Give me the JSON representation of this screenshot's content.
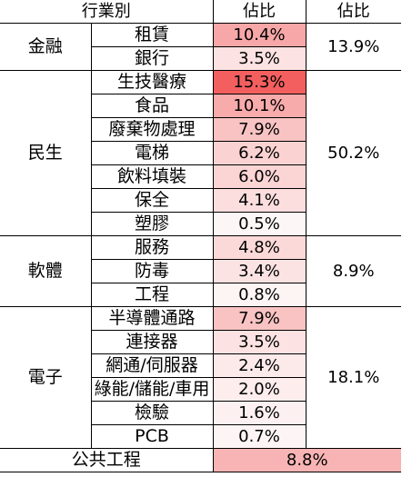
{
  "header": {
    "industry": "行業別",
    "share": "佔比",
    "group_share": "佔比"
  },
  "groups": [
    {
      "name": "金融",
      "total": "13.9%",
      "items": [
        {
          "label": "租賃",
          "value": "10.4%",
          "color": "#f7a7a7"
        },
        {
          "label": "銀行",
          "value": "3.5%",
          "color": "#fce2e2"
        }
      ]
    },
    {
      "name": "民生",
      "total": "50.2%",
      "items": [
        {
          "label": "生技醫療",
          "value": "15.3%",
          "color": "#f35f5f"
        },
        {
          "label": "食品",
          "value": "10.1%",
          "color": "#f8abab"
        },
        {
          "label": "廢棄物處理",
          "value": "7.9%",
          "color": "#f9c3c3"
        },
        {
          "label": "電梯",
          "value": "6.2%",
          "color": "#fbd2d2"
        },
        {
          "label": "飲料填裝",
          "value": "6.0%",
          "color": "#fbd4d4"
        },
        {
          "label": "保全",
          "value": "4.1%",
          "color": "#fcdede"
        },
        {
          "label": "塑膠",
          "value": "0.5%",
          "color": "#fdf6f6"
        }
      ]
    },
    {
      "name": "軟體",
      "total": "8.9%",
      "items": [
        {
          "label": "服務",
          "value": "4.8%",
          "color": "#fcd9d9"
        },
        {
          "label": "防毒",
          "value": "3.4%",
          "color": "#fce3e3"
        },
        {
          "label": "工程",
          "value": "0.8%",
          "color": "#fdf4f4"
        }
      ]
    },
    {
      "name": "電子",
      "total": "18.1%",
      "items": [
        {
          "label": "半導體通路",
          "value": "7.9%",
          "color": "#f9c3c3"
        },
        {
          "label": "連接器",
          "value": "3.5%",
          "color": "#fce2e2"
        },
        {
          "label": "網通/伺服器",
          "value": "2.4%",
          "color": "#fceaea"
        },
        {
          "label": "綠能/儲能/車用",
          "value": "2.0%",
          "color": "#fdeded"
        },
        {
          "label": "檢驗",
          "value": "1.6%",
          "color": "#fdf0f0"
        },
        {
          "label": "PCB",
          "value": "0.7%",
          "color": "#fdf5f5"
        }
      ]
    }
  ],
  "footer": {
    "label": "公共工程",
    "value": "8.8%",
    "color": "#f8b4b4"
  }
}
